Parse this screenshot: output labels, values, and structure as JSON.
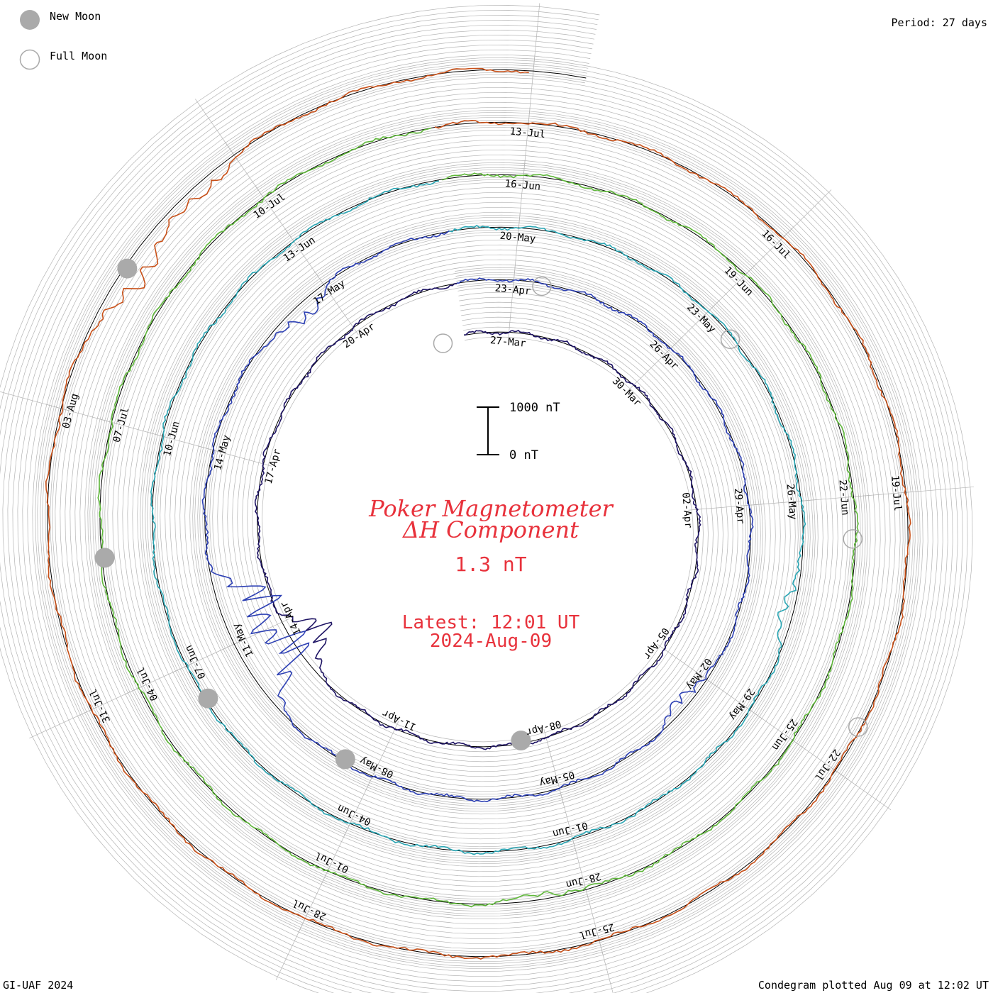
{
  "legend": {
    "new_moon": "New Moon",
    "full_moon": "Full Moon"
  },
  "period": "Period: 27 days",
  "footer": {
    "left": "GI-UAF 2024",
    "right": "Condegram plotted Aug 09 at 12:02 UT"
  },
  "center": {
    "title_line1": "Poker Magnetometer",
    "title_line2": "ΔH Component",
    "value": "1.3 nT",
    "latest_line1": "Latest: 12:01 UT",
    "latest_line2": "2024-Aug-09",
    "scale_top": "1000 nT",
    "scale_bottom": "0 nT"
  },
  "colors": {
    "title": "#e8323c",
    "grid": "#b4b4b4",
    "moon_new": "#aaaaaa",
    "moon_full": "#aaaaaa"
  },
  "chart_data": {
    "type": "line",
    "title": "Poker Magnetometer ΔH Component",
    "period_days": 27,
    "start_date": "2024-03-26",
    "end_date": "2024-08-09",
    "date_labels": [
      "27-Mar",
      "30-Mar",
      "02-Apr",
      "05-Apr",
      "08-Apr",
      "11-Apr",
      "14-Apr",
      "17-Apr",
      "20-Apr",
      "23-Apr",
      "26-Apr",
      "29-Apr",
      "02-May",
      "05-May",
      "08-May",
      "11-May",
      "14-May",
      "17-May",
      "20-May",
      "23-May",
      "26-May",
      "29-May",
      "01-Jun",
      "04-Jun",
      "07-Jun",
      "10-Jun",
      "13-Jun",
      "16-Jun",
      "19-Jun",
      "22-Jun",
      "25-Jun",
      "28-Jun",
      "01-Jul",
      "04-Jul",
      "07-Jul",
      "10-Jul",
      "13-Jul",
      "16-Jul",
      "19-Jul",
      "22-Jul",
      "25-Jul",
      "28-Jul",
      "31-Jul",
      "03-Aug"
    ],
    "rotations": [
      {
        "start": "2024-03-26",
        "end": "2024-04-22",
        "color": "#1e1464"
      },
      {
        "start": "2024-04-22",
        "end": "2024-05-19",
        "color": "#2d40b4"
      },
      {
        "start": "2024-05-19",
        "end": "2024-06-15",
        "color": "#2aa6b4"
      },
      {
        "start": "2024-06-15",
        "end": "2024-07-12",
        "color": "#5fb83a"
      },
      {
        "start": "2024-07-12",
        "end": "2024-08-09",
        "color": "#c85018"
      }
    ],
    "disturbances": [
      {
        "date": "2024-04-13",
        "peak_nT": 900
      },
      {
        "date": "2024-05-02",
        "peak_nT": 300
      },
      {
        "date": "2024-05-10",
        "peak_nT": 1500
      },
      {
        "date": "2024-05-11",
        "peak_nT": 1300
      },
      {
        "date": "2024-05-16",
        "peak_nT": 400
      },
      {
        "date": "2024-05-27",
        "peak_nT": 300
      },
      {
        "date": "2024-06-28",
        "peak_nT": 150
      },
      {
        "date": "2024-08-04",
        "peak_nT": 600
      },
      {
        "date": "2024-08-05",
        "peak_nT": 300
      }
    ],
    "moon_phases": [
      {
        "type": "full",
        "date": "2024-03-25"
      },
      {
        "type": "new",
        "date": "2024-04-08"
      },
      {
        "type": "full",
        "date": "2024-04-23"
      },
      {
        "type": "new",
        "date": "2024-05-08"
      },
      {
        "type": "full",
        "date": "2024-05-23"
      },
      {
        "type": "new",
        "date": "2024-06-06"
      },
      {
        "type": "full",
        "date": "2024-06-22"
      },
      {
        "type": "new",
        "date": "2024-07-05"
      },
      {
        "type": "full",
        "date": "2024-07-21"
      },
      {
        "type": "new",
        "date": "2024-08-04"
      }
    ],
    "latest_value_nT": 1.3,
    "scale_bar_nT": 1000
  }
}
